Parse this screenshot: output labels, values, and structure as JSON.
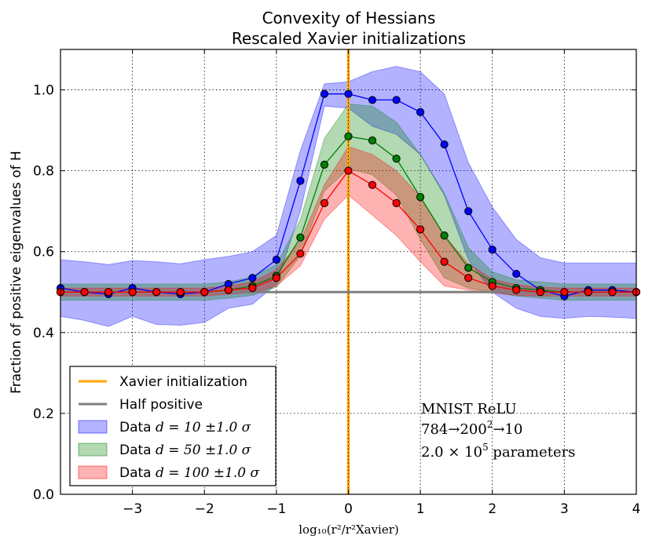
{
  "chart_data": {
    "type": "line",
    "title": "Convexity of Hessians",
    "subtitle": "Rescaled Xavier initializations",
    "xlabel": "log₁₀(r²/r²Xavier)",
    "ylabel": "Fraction of positive eigenvalues of H",
    "xlim": [
      -4,
      4
    ],
    "ylim": [
      0.0,
      1.1
    ],
    "xticks": [
      -3,
      -2,
      -1,
      0,
      1,
      2,
      3,
      4
    ],
    "xtick_labels": [
      "−3",
      "−2",
      "−1",
      "0",
      "1",
      "2",
      "3",
      "4"
    ],
    "yticks": [
      0.0,
      0.2,
      0.4,
      0.6,
      0.8,
      1.0
    ],
    "ytick_labels": [
      "0.0",
      "0.2",
      "0.4",
      "0.6",
      "0.8",
      "1.0"
    ],
    "grid": true,
    "legend_position": "lower-left",
    "x": [
      -4.0,
      -3.667,
      -3.333,
      -3.0,
      -2.667,
      -2.333,
      -2.0,
      -1.667,
      -1.333,
      -1.0,
      -0.667,
      -0.333,
      0.0,
      0.333,
      0.667,
      1.0,
      1.333,
      1.667,
      2.0,
      2.333,
      2.667,
      3.0,
      3.333,
      3.667,
      4.0
    ],
    "reference_lines": [
      {
        "name": "Xavier initialization",
        "orientation": "vertical",
        "value": 0,
        "color": "#ffa500"
      },
      {
        "name": "Half positive",
        "orientation": "horizontal",
        "value": 0.5,
        "color": "#808080"
      }
    ],
    "series": [
      {
        "name": "Data",
        "d_label": "d = 10",
        "band_label": "±1.0 σ",
        "line_color": "#0000ff",
        "marker_color": "#0000ff",
        "band_color": "#0000ff",
        "values": [
          0.51,
          0.5,
          0.495,
          0.51,
          0.5,
          0.495,
          0.5,
          0.52,
          0.535,
          0.58,
          0.775,
          0.99,
          0.99,
          0.975,
          0.975,
          0.945,
          0.865,
          0.7,
          0.605,
          0.545,
          0.505,
          0.49,
          0.505,
          0.505,
          0.5
        ],
        "upper": [
          0.58,
          0.575,
          0.568,
          0.578,
          0.575,
          0.57,
          0.58,
          0.588,
          0.6,
          0.64,
          0.85,
          1.015,
          1.02,
          1.045,
          1.058,
          1.045,
          0.99,
          0.82,
          0.71,
          0.63,
          0.585,
          0.572,
          0.572,
          0.572,
          0.572
        ],
        "lower": [
          0.44,
          0.43,
          0.415,
          0.44,
          0.42,
          0.418,
          0.425,
          0.46,
          0.47,
          0.52,
          0.7,
          0.96,
          0.955,
          0.91,
          0.89,
          0.84,
          0.74,
          0.58,
          0.5,
          0.46,
          0.44,
          0.435,
          0.44,
          0.438,
          0.435
        ]
      },
      {
        "name": "Data",
        "d_label": "d = 50",
        "band_label": "±1.0 σ",
        "line_color": "#007f00",
        "marker_color": "#008000",
        "band_color": "#008000",
        "values": [
          0.5,
          0.5,
          0.5,
          0.5,
          0.5,
          0.5,
          0.5,
          0.505,
          0.515,
          0.54,
          0.635,
          0.815,
          0.885,
          0.875,
          0.83,
          0.735,
          0.64,
          0.56,
          0.525,
          0.51,
          0.505,
          0.5,
          0.5,
          0.5,
          0.5
        ],
        "upper": [
          0.52,
          0.52,
          0.52,
          0.52,
          0.52,
          0.52,
          0.52,
          0.525,
          0.538,
          0.568,
          0.68,
          0.88,
          0.965,
          0.96,
          0.92,
          0.84,
          0.745,
          0.61,
          0.55,
          0.53,
          0.525,
          0.52,
          0.52,
          0.52,
          0.52
        ],
        "lower": [
          0.48,
          0.48,
          0.48,
          0.48,
          0.48,
          0.48,
          0.48,
          0.485,
          0.492,
          0.512,
          0.59,
          0.75,
          0.805,
          0.79,
          0.74,
          0.63,
          0.535,
          0.51,
          0.5,
          0.49,
          0.485,
          0.48,
          0.48,
          0.48,
          0.48
        ]
      },
      {
        "name": "Data",
        "d_label": "d = 100",
        "band_label": "±1.0 σ",
        "line_color": "#ff0000",
        "marker_color": "#ff0000",
        "band_color": "#ff0000",
        "values": [
          0.5,
          0.5,
          0.5,
          0.5,
          0.5,
          0.5,
          0.5,
          0.505,
          0.51,
          0.535,
          0.595,
          0.72,
          0.8,
          0.765,
          0.72,
          0.655,
          0.575,
          0.535,
          0.515,
          0.505,
          0.5,
          0.5,
          0.5,
          0.5,
          0.5
        ],
        "upper": [
          0.51,
          0.51,
          0.51,
          0.51,
          0.51,
          0.51,
          0.51,
          0.515,
          0.525,
          0.555,
          0.625,
          0.765,
          0.86,
          0.84,
          0.8,
          0.735,
          0.64,
          0.57,
          0.532,
          0.518,
          0.512,
          0.51,
          0.51,
          0.51,
          0.51
        ],
        "lower": [
          0.49,
          0.49,
          0.49,
          0.49,
          0.49,
          0.49,
          0.49,
          0.495,
          0.498,
          0.515,
          0.565,
          0.68,
          0.74,
          0.69,
          0.64,
          0.575,
          0.515,
          0.505,
          0.498,
          0.492,
          0.49,
          0.49,
          0.49,
          0.49,
          0.49
        ]
      }
    ],
    "legend": [
      {
        "label": "Xavier initialization",
        "kind": "line",
        "color": "#ffa500"
      },
      {
        "label": "Half positive",
        "kind": "line",
        "color": "#808080"
      },
      {
        "label_prefix": "Data",
        "label_d": "d = 10",
        "label_sigma": "±1.0 σ",
        "kind": "band",
        "color": "#0000ff"
      },
      {
        "label_prefix": "Data",
        "label_d": "d = 50",
        "label_sigma": "±1.0 σ",
        "kind": "band",
        "color": "#008000"
      },
      {
        "label_prefix": "Data",
        "label_d": "d = 100",
        "label_sigma": "±1.0 σ",
        "kind": "band",
        "color": "#ff0000"
      }
    ],
    "annotation": {
      "line1": "MNIST ReLU",
      "line2_a": "784→200",
      "line2_sup": "2",
      "line2_b": "→10",
      "line3_a": "2.0 × 10",
      "line3_sup": "5",
      "line3_b": " parameters"
    }
  }
}
